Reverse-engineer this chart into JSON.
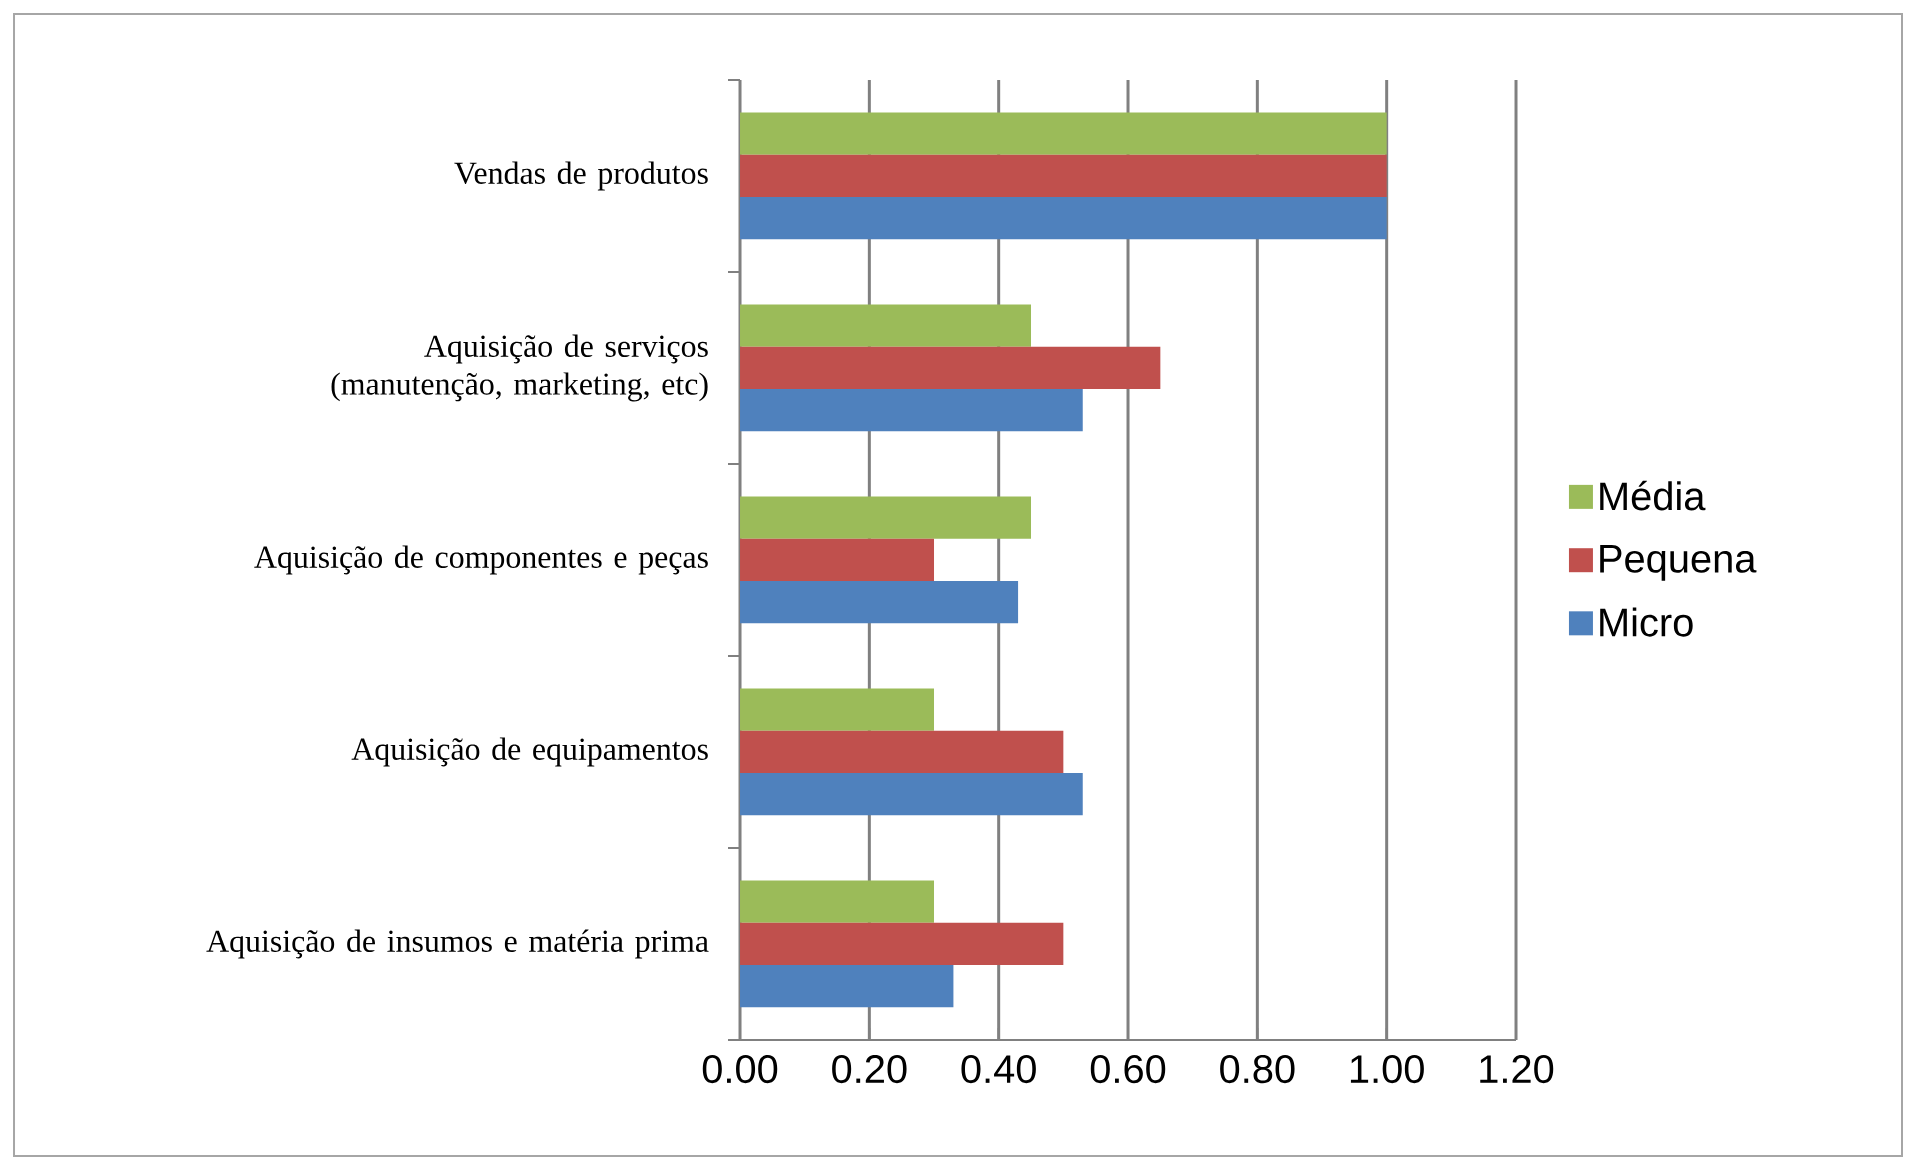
{
  "chart_data": {
    "type": "bar",
    "orientation": "horizontal",
    "categories": [
      "Vendas de produtos",
      "Aquisição de serviços (manutenção, marketing, etc)",
      "Aquisição de componentes e peças",
      "Aquisição de equipamentos",
      "Aquisição de insumos e matéria prima"
    ],
    "series": [
      {
        "name": "Média",
        "color": "#9bbb59",
        "values": [
          1.0,
          0.45,
          0.45,
          0.3,
          0.3
        ]
      },
      {
        "name": "Pequena",
        "color": "#c0504d",
        "values": [
          1.0,
          0.65,
          0.3,
          0.5,
          0.5
        ]
      },
      {
        "name": "Micro",
        "color": "#4f81bd",
        "values": [
          1.0,
          0.53,
          0.43,
          0.53,
          0.33
        ]
      }
    ],
    "xlim": [
      0,
      1.2
    ],
    "xticks": [
      {
        "value": 0,
        "label": "0.00"
      },
      {
        "value": 0.2,
        "label": "0.20"
      },
      {
        "value": 0.4,
        "label": "0.40"
      },
      {
        "value": 0.6,
        "label": "0.60"
      },
      {
        "value": 0.8,
        "label": "0.80"
      },
      {
        "value": 1.0,
        "label": "1.00"
      },
      {
        "value": 1.2,
        "label": "1.20"
      }
    ],
    "grid": "x",
    "legend": "right"
  }
}
